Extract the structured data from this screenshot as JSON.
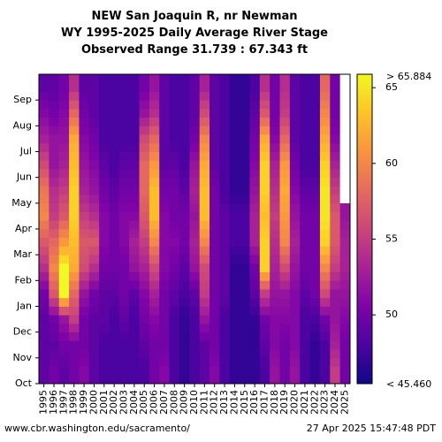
{
  "chart_data": {
    "type": "heatmap",
    "title": [
      "NEW San Joaquin R, nr Newman",
      "WY 1995-2025 Daily Average River Stage",
      "Observed Range 31.739 : 67.343 ft"
    ],
    "x_categories": [
      "1995",
      "1996",
      "1997",
      "1998",
      "1999",
      "2000",
      "2001",
      "2002",
      "2003",
      "2004",
      "2005",
      "2006",
      "2007",
      "2008",
      "2009",
      "2010",
      "2011",
      "2012",
      "2013",
      "2014",
      "2015",
      "2016",
      "2017",
      "2018",
      "2019",
      "2020",
      "2021",
      "2022",
      "2023",
      "2024",
      "2025"
    ],
    "y_categories": [
      "Oct",
      "Nov",
      "Dec",
      "Jan",
      "Feb",
      "Mar",
      "Apr",
      "May",
      "Jun",
      "Jul",
      "Aug",
      "Sep"
    ],
    "colorbar": {
      "min": 45.46,
      "max": 65.884,
      "min_label": "< 45.460",
      "max_label": "> 65.884",
      "ticks": [
        50,
        55,
        60,
        65
      ],
      "colormap": "plasma"
    },
    "approx_year_profiles_ft": {
      "1995": [
        49,
        49,
        49,
        50,
        54,
        57,
        60,
        59,
        56,
        53,
        51,
        49
      ],
      "1996": [
        50,
        49,
        50,
        57,
        60,
        58,
        55,
        54,
        52,
        52,
        50,
        49
      ],
      "1997": [
        49,
        50,
        52,
        65.9,
        65.9,
        61,
        57,
        55,
        53,
        52,
        51,
        50
      ],
      "1998": [
        50,
        50,
        55,
        58,
        62,
        63,
        64,
        64,
        63,
        62,
        58,
        54
      ],
      "1999": [
        51,
        50,
        50,
        52,
        56,
        57,
        55,
        53,
        52,
        51,
        50,
        49
      ],
      "2000": [
        49,
        49,
        49,
        50,
        54,
        57,
        54,
        52,
        51,
        50,
        49,
        49
      ],
      "2001": [
        48,
        48,
        49,
        49,
        50,
        51,
        51,
        50,
        49,
        48,
        48,
        48
      ],
      "2002": [
        48,
        48,
        48,
        49,
        50,
        50,
        50,
        49,
        48,
        48,
        48,
        48
      ],
      "2003": [
        48,
        48,
        49,
        50,
        50,
        51,
        51,
        50,
        49,
        48,
        48,
        48
      ],
      "2004": [
        48,
        48,
        48,
        49,
        52,
        53,
        51,
        50,
        49,
        48,
        48,
        48
      ],
      "2005": [
        48,
        49,
        50,
        51,
        53,
        55,
        57,
        58,
        58,
        56,
        52,
        50
      ],
      "2006": [
        50,
        50,
        51,
        53,
        56,
        60,
        63,
        63,
        61,
        58,
        54,
        52
      ],
      "2007": [
        51,
        50,
        50,
        50,
        51,
        51,
        51,
        50,
        49,
        49,
        49,
        49
      ],
      "2008": [
        48,
        48,
        48,
        49,
        50,
        51,
        50,
        50,
        49,
        48,
        48,
        48
      ],
      "2009": [
        47,
        47,
        47,
        48,
        49,
        50,
        50,
        49,
        48,
        48,
        48,
        48
      ],
      "2010": [
        48,
        48,
        48,
        49,
        52,
        53,
        52,
        53,
        52,
        50,
        49,
        49
      ],
      "2011": [
        49,
        49,
        52,
        55,
        56,
        60,
        63,
        63,
        62,
        60,
        56,
        53
      ],
      "2012": [
        51,
        50,
        50,
        50,
        50,
        50,
        50,
        50,
        49,
        49,
        49,
        49
      ],
      "2013": [
        48,
        48,
        48,
        49,
        49,
        49,
        49,
        48,
        48,
        48,
        48,
        48
      ],
      "2014": [
        47,
        47,
        47,
        47,
        47,
        48,
        48,
        47,
        47,
        47,
        47,
        47
      ],
      "2015": [
        47,
        47,
        47,
        47,
        47,
        48,
        48,
        47,
        47,
        47,
        47,
        47
      ],
      "2016": [
        47,
        47,
        47,
        49,
        50,
        53,
        53,
        52,
        51,
        50,
        49,
        48
      ],
      "2017": [
        48,
        49,
        50,
        55,
        64,
        64,
        63,
        64,
        64,
        62,
        57,
        54
      ],
      "2018": [
        52,
        51,
        51,
        52,
        53,
        54,
        55,
        54,
        53,
        51,
        50,
        50
      ],
      "2019": [
        50,
        50,
        51,
        52,
        56,
        60,
        61,
        62,
        61,
        58,
        55,
        54
      ],
      "2020": [
        52,
        51,
        51,
        51,
        52,
        53,
        52,
        51,
        50,
        49,
        49,
        49
      ],
      "2021": [
        48,
        48,
        48,
        49,
        50,
        50,
        50,
        49,
        48,
        48,
        48,
        48
      ],
      "2022": [
        47,
        47,
        48,
        50,
        50,
        50,
        50,
        49,
        48,
        48,
        48,
        48
      ],
      "2023": [
        48,
        48,
        50,
        56,
        60,
        64,
        65,
        65,
        64,
        62,
        60,
        58
      ],
      "2024": [
        55,
        53,
        52,
        52,
        55,
        57,
        57,
        55,
        53,
        51,
        50,
        50
      ],
      "2025": [
        50,
        50,
        51,
        52,
        53,
        53,
        52,
        null,
        null,
        null,
        null,
        null
      ]
    }
  },
  "footer": {
    "source": "www.cbr.washington.edu/sacramento/",
    "timestamp": "27 Apr 2025 15:47:48 PDT"
  }
}
